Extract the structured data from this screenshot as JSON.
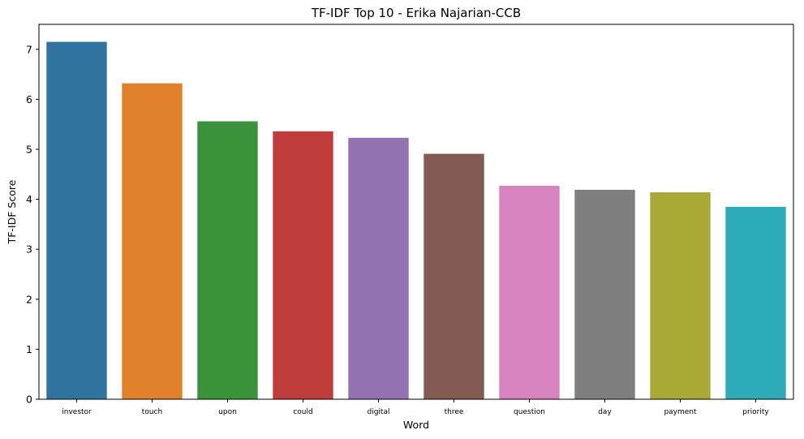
{
  "chart_data": {
    "type": "bar",
    "title": "TF-IDF Top 10 - Erika Najarian-CCB",
    "xlabel": "Word",
    "ylabel": "TF-IDF Score",
    "categories": [
      "investor",
      "touch",
      "upon",
      "could",
      "digital",
      "three",
      "question",
      "day",
      "payment",
      "priority"
    ],
    "values": [
      7.15,
      6.32,
      5.56,
      5.36,
      5.23,
      4.91,
      4.27,
      4.19,
      4.14,
      3.85
    ],
    "colors": [
      "#3274a1",
      "#e1812c",
      "#3a923a",
      "#c03d3e",
      "#9372b2",
      "#845b53",
      "#d684bd",
      "#7f7f7f",
      "#a9aa35",
      "#2eabb8"
    ],
    "ylim": [
      0,
      7.5
    ],
    "yticks": [
      0,
      1,
      2,
      3,
      4,
      5,
      6,
      7
    ],
    "grid": false,
    "legend": "none"
  }
}
